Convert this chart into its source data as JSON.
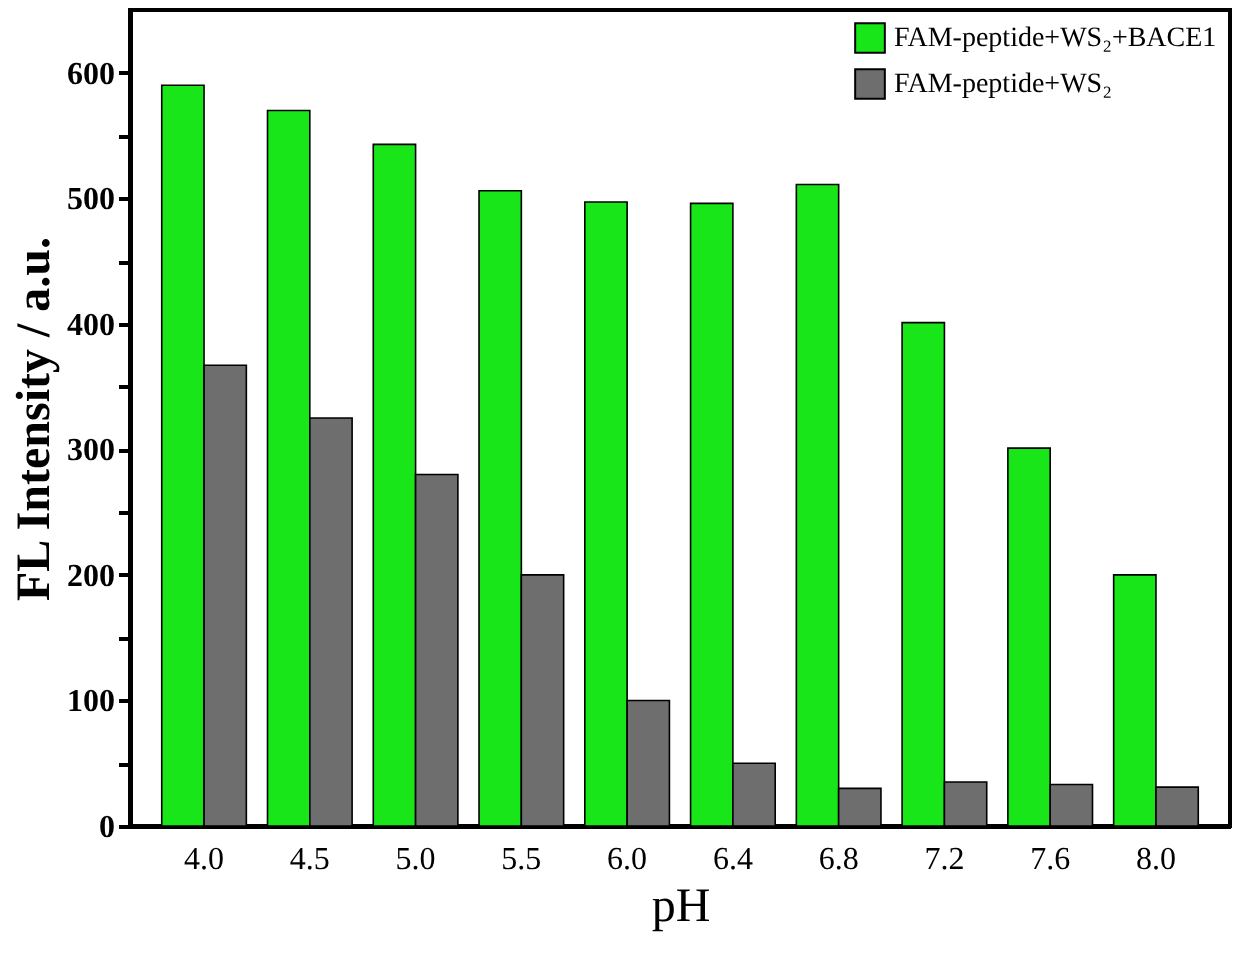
{
  "chart_data": {
    "type": "bar",
    "xlabel": "pH",
    "ylabel": "FL Intensity / a.u.",
    "categories": [
      "4.0",
      "4.5",
      "5.0",
      "5.5",
      "6.0",
      "6.4",
      "6.8",
      "7.2",
      "7.6",
      "8.0"
    ],
    "series": [
      {
        "name": "FAM-peptide+WS₂+BACE1",
        "color": "#19e619",
        "values": [
          590,
          570,
          543,
          506,
          497,
          496,
          511,
          401,
          301,
          200
        ]
      },
      {
        "name": "FAM-peptide+WS₂",
        "color": "#6e6e6e",
        "values": [
          367,
          325,
          280,
          200,
          100,
          50,
          30,
          35,
          33,
          31
        ]
      }
    ],
    "ylim": [
      0,
      650
    ],
    "yticks": [
      0,
      {
        "value": 50,
        "label": null
      },
      100,
      {
        "value": 150,
        "label": null
      },
      200,
      {
        "value": 250,
        "label": null
      },
      300,
      {
        "value": 350,
        "label": null
      },
      400,
      {
        "value": 450,
        "label": null
      },
      500,
      {
        "value": 550,
        "label": null
      },
      600
    ],
    "grid": false,
    "legend": "top right"
  }
}
